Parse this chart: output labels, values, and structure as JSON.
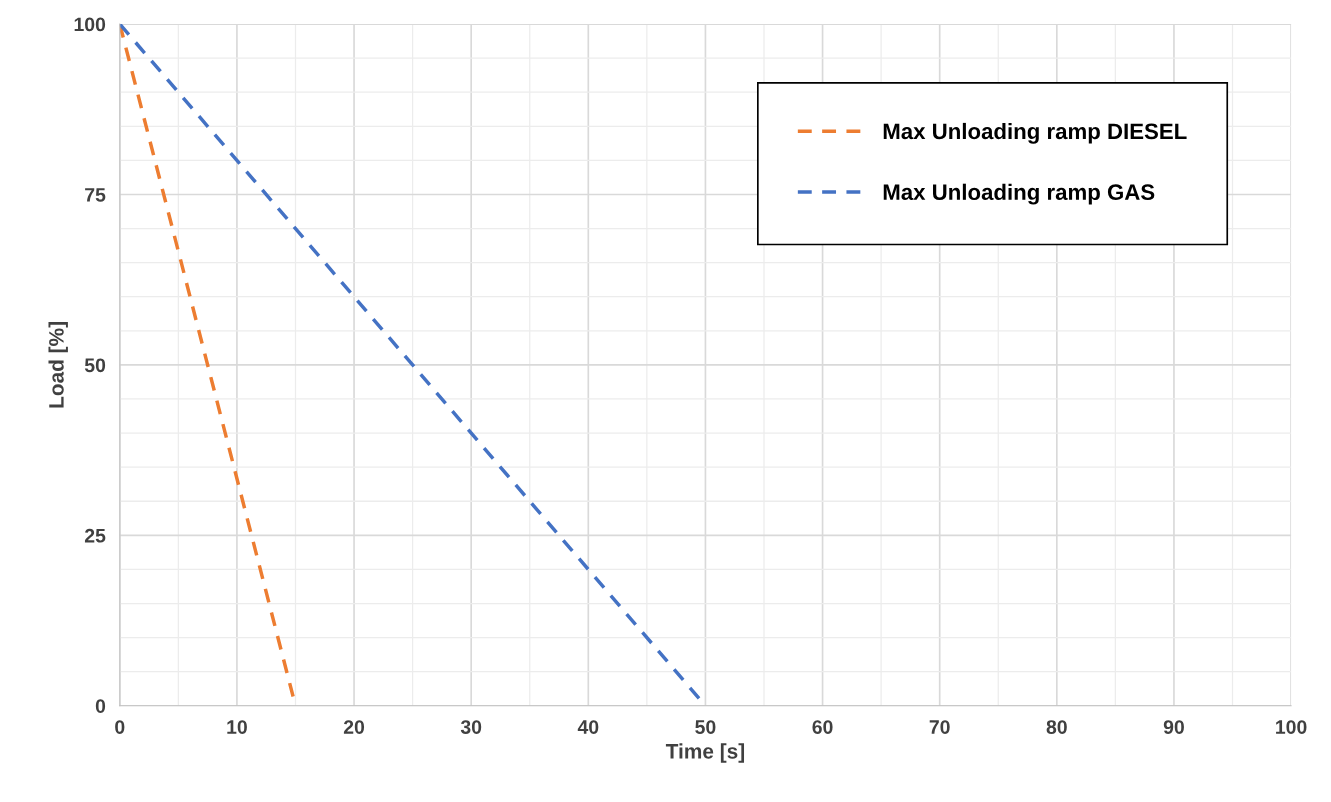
{
  "chart_data": {
    "type": "line",
    "xlabel": "Time [s]",
    "ylabel": "Load [%]",
    "series": [
      {
        "name": "Max Unloading ramp DIESEL",
        "color": "#ed7d31",
        "x": [
          0,
          15
        ],
        "values": [
          100,
          0
        ]
      },
      {
        "name": "Max Unloading ramp GAS",
        "color": "#4472c4",
        "x": [
          0,
          50
        ],
        "values": [
          100,
          0
        ]
      }
    ],
    "xlim": [
      0,
      100
    ],
    "xticks": [
      0,
      10,
      20,
      30,
      40,
      50,
      60,
      70,
      80,
      90,
      100
    ],
    "ylim": [
      0,
      100
    ],
    "yticks": [
      0,
      25,
      50,
      75,
      100
    ],
    "grid": true,
    "legend": "top right",
    "line_style": "dashed",
    "marker": "none"
  }
}
